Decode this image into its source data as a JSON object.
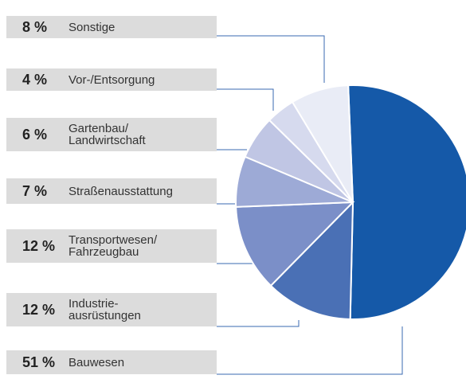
{
  "chart_data": {
    "type": "pie",
    "categories": [
      "Bauwesen",
      "Industrie-\nausrüstungen",
      "Transportwesen/\nFahrzeugbau",
      "Straßenausstattung",
      "Gartenbau/\nLandwirtschaft",
      "Vor-/Entsorgung",
      "Sonstige"
    ],
    "values": [
      51,
      12,
      12,
      7,
      6,
      4,
      8
    ],
    "value_labels": [
      "51 %",
      "12 %",
      "12 %",
      "7 %",
      "6 %",
      "4 %",
      "8 %"
    ],
    "colors": [
      "#1559a8",
      "#4a70b5",
      "#7b8fc8",
      "#9daad6",
      "#c0c6e4",
      "#d6daee",
      "#e9ecf6"
    ]
  }
}
